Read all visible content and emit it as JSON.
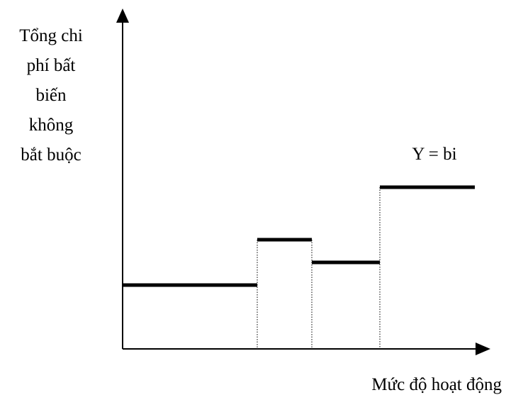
{
  "chart_data": {
    "type": "line",
    "title": "",
    "ylabel_lines": [
      "Tổng chi",
      "phí bất",
      "biến",
      "không",
      "bắt buộc"
    ],
    "xlabel": "Mức độ hoạt động",
    "annotation": "Y = bi",
    "xlim": [
      0,
      530
    ],
    "ylim": [
      0,
      495
    ],
    "steps": [
      {
        "x_start": 0,
        "x_end": 190,
        "y": 90
      },
      {
        "x_start": 190,
        "x_end": 267,
        "y": 154
      },
      {
        "x_start": 267,
        "x_end": 363,
        "y": 122
      },
      {
        "x_start": 363,
        "x_end": 497,
        "y": 228
      }
    ],
    "grid": false,
    "legend": "none"
  },
  "colors": {
    "line": "#000000",
    "background": "#ffffff"
  }
}
